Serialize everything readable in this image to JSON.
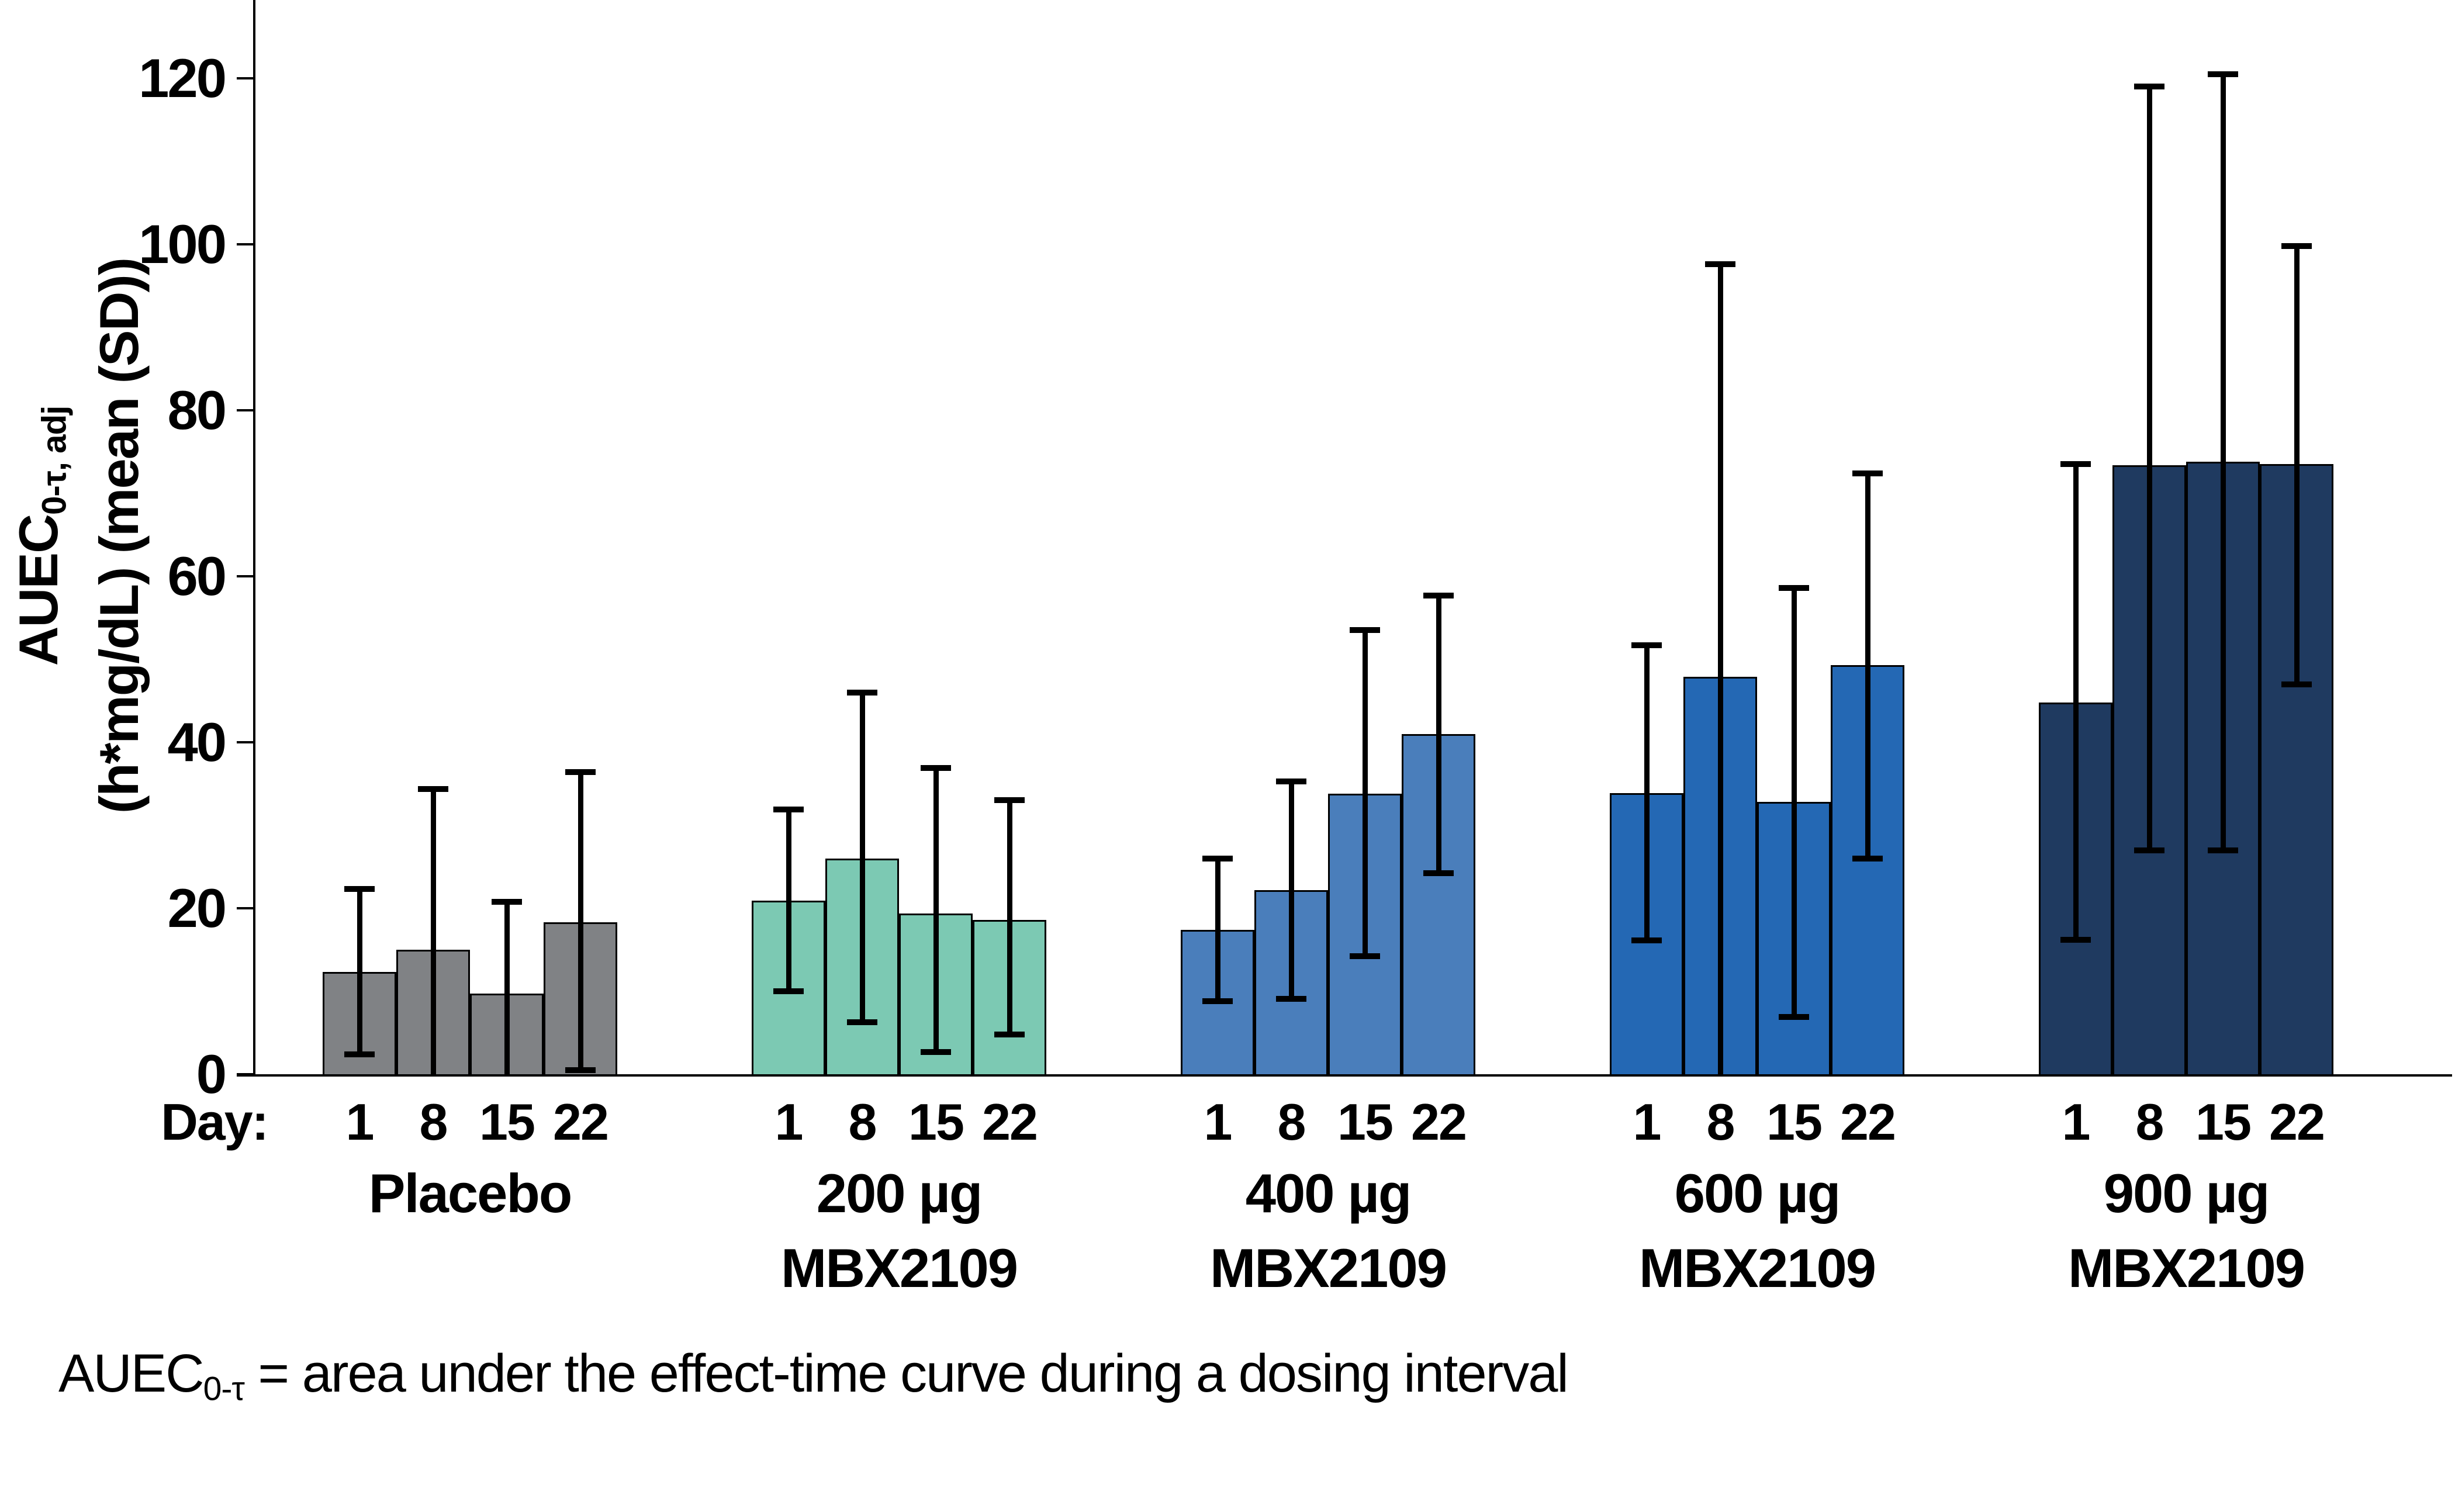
{
  "chart_data": {
    "type": "bar",
    "grid": false,
    "legend_position": "none",
    "y_axis": {
      "title_main": "AUEC",
      "title_main_sub": "0-τ, adj",
      "title_line2": "(h*mg/dL) (mean (SD))",
      "ticks": [
        0,
        20,
        40,
        60,
        80,
        100,
        120
      ],
      "ylim": [
        0,
        130
      ]
    },
    "x_axis": {
      "day_prefix": "Day:",
      "days": [
        "1",
        "8",
        "15",
        "22"
      ]
    },
    "groups": [
      {
        "label_lines": [
          "Placebo"
        ],
        "color": "#808285",
        "bars": [
          {
            "day": "1",
            "mean": 12.3,
            "err_hi": 22.3,
            "err_lo": 2.4
          },
          {
            "day": "8",
            "mean": 15.0,
            "err_hi": 34.4,
            "err_lo": null
          },
          {
            "day": "15",
            "mean": 9.7,
            "err_hi": 20.8,
            "err_lo": null
          },
          {
            "day": "22",
            "mean": 18.3,
            "err_hi": 36.4,
            "err_lo": 0.5
          }
        ]
      },
      {
        "label_lines": [
          "200 µg",
          "MBX2109"
        ],
        "color": "#7CC9B3",
        "bars": [
          {
            "day": "1",
            "mean": 20.9,
            "err_hi": 31.9,
            "err_lo": 10.0
          },
          {
            "day": "8",
            "mean": 26.0,
            "err_hi": 46.0,
            "err_lo": 6.3
          },
          {
            "day": "15",
            "mean": 19.4,
            "err_hi": 36.9,
            "err_lo": 2.7
          },
          {
            "day": "22",
            "mean": 18.6,
            "err_hi": 33.0,
            "err_lo": 4.8
          }
        ]
      },
      {
        "label_lines": [
          "400 µg",
          "MBX2109"
        ],
        "color": "#4A7EBB",
        "bars": [
          {
            "day": "1",
            "mean": 17.4,
            "err_hi": 26.0,
            "err_lo": 8.8
          },
          {
            "day": "8",
            "mean": 22.2,
            "err_hi": 35.3,
            "err_lo": 9.1
          },
          {
            "day": "15",
            "mean": 33.8,
            "err_hi": 53.5,
            "err_lo": 14.2
          },
          {
            "day": "22",
            "mean": 41.0,
            "err_hi": 57.7,
            "err_lo": 24.2
          }
        ]
      },
      {
        "label_lines": [
          "600 µg",
          "MBX2109"
        ],
        "color": "#2468B4",
        "bars": [
          {
            "day": "1",
            "mean": 33.9,
            "err_hi": 51.7,
            "err_lo": 16.1
          },
          {
            "day": "8",
            "mean": 47.9,
            "err_hi": 97.6,
            "err_lo": null
          },
          {
            "day": "15",
            "mean": 32.8,
            "err_hi": 58.6,
            "err_lo": 6.9
          },
          {
            "day": "22",
            "mean": 49.3,
            "err_hi": 72.4,
            "err_lo": 26.0
          }
        ]
      },
      {
        "label_lines": [
          "900 µg",
          "MBX2109"
        ],
        "color": "#1F3A60",
        "bars": [
          {
            "day": "1",
            "mean": 44.8,
            "err_hi": 73.5,
            "err_lo": 16.2
          },
          {
            "day": "8",
            "mean": 73.4,
            "err_hi": 119.0,
            "err_lo": 27.0
          },
          {
            "day": "15",
            "mean": 73.8,
            "err_hi": 120.5,
            "err_lo": 27.0
          },
          {
            "day": "22",
            "mean": 73.5,
            "err_hi": 99.8,
            "err_lo": 47.0
          }
        ]
      }
    ]
  },
  "footnote": {
    "prefix": "AUEC",
    "sub": "0-τ",
    "rest": " = area under the effect-time curve during a dosing interval"
  }
}
